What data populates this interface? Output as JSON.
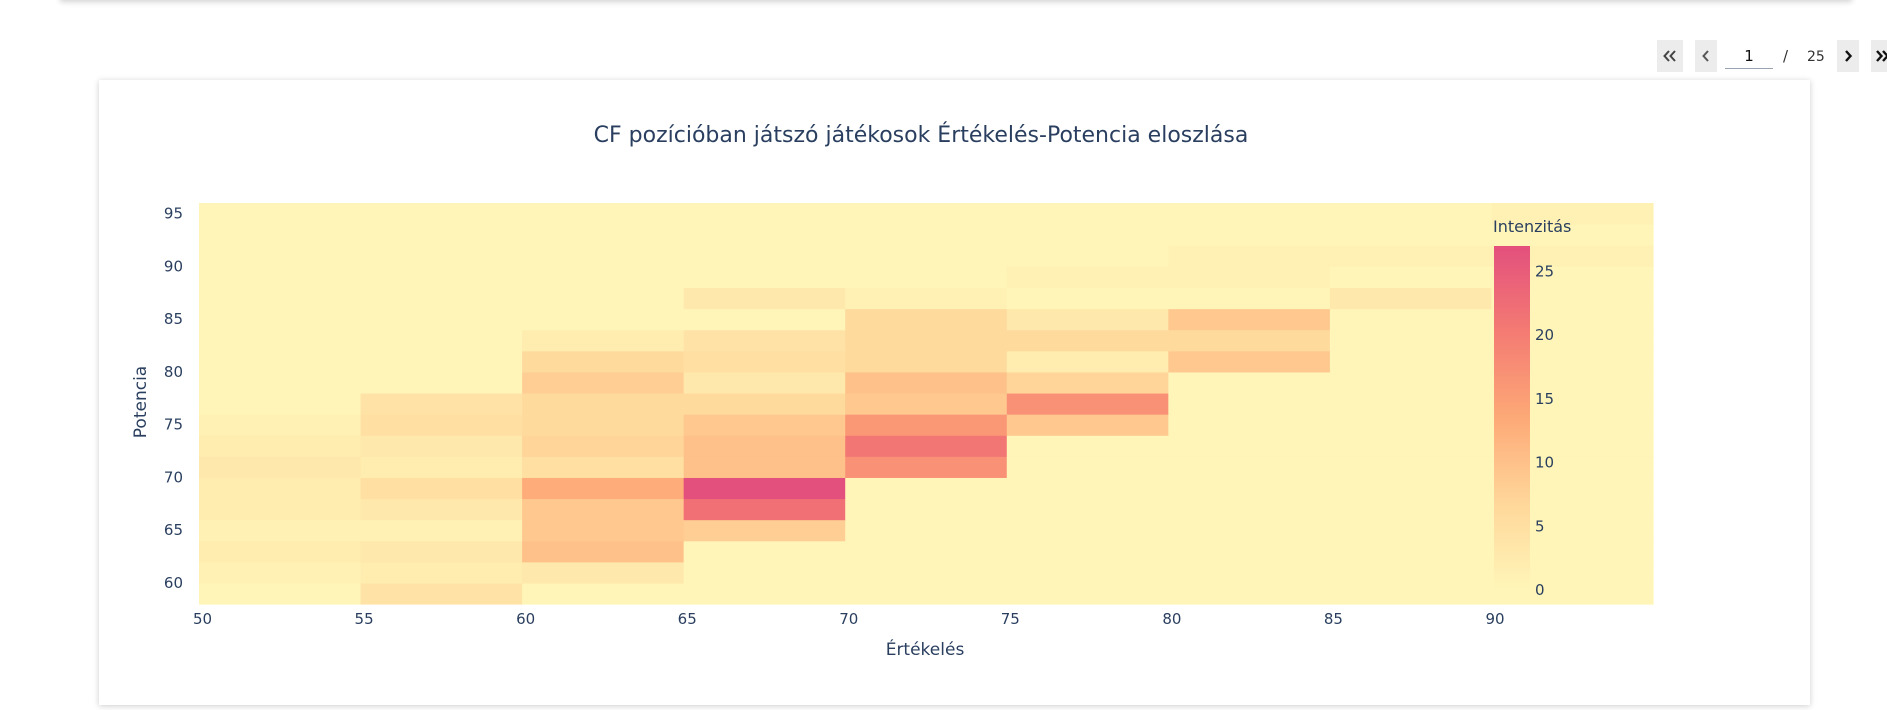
{
  "pagination": {
    "current_page": "1",
    "separator": "/",
    "total_pages": "25",
    "first_icon": "double-chevron-left-icon",
    "prev_icon": "chevron-left-icon",
    "next_icon": "chevron-right-icon",
    "last_icon": "double-chevron-right-icon"
  },
  "chart_data": {
    "type": "heatmap",
    "title": "CF pozícióban játszó játékosok Értékelés-Potencia eloszlása",
    "xlabel": "Értékelés",
    "ylabel": "Potencia",
    "x_bins": [
      50,
      55,
      60,
      65,
      70,
      75,
      80,
      85,
      90
    ],
    "x_bin_width": 5,
    "y_bins": [
      58,
      60,
      62,
      64,
      66,
      68,
      70,
      72,
      74,
      76,
      78,
      80,
      82,
      84,
      86,
      88,
      90,
      92,
      94
    ],
    "y_bin_width": 2,
    "xlim": [
      50,
      95
    ],
    "ylim": [
      58,
      96
    ],
    "x_ticks": [
      50,
      55,
      60,
      65,
      70,
      75,
      80,
      85,
      90
    ],
    "y_ticks": [
      60,
      65,
      70,
      75,
      80,
      85,
      90,
      95
    ],
    "z": [
      [
        0,
        4,
        0,
        0,
        0,
        0,
        0,
        0,
        0
      ],
      [
        1,
        2,
        3,
        0,
        0,
        0,
        0,
        0,
        0
      ],
      [
        2,
        3,
        10,
        0,
        0,
        0,
        0,
        0,
        0
      ],
      [
        1,
        1,
        9,
        8,
        0,
        0,
        0,
        0,
        0
      ],
      [
        2,
        3,
        9,
        22,
        0,
        0,
        0,
        0,
        0
      ],
      [
        2,
        5,
        13,
        27,
        0,
        0,
        0,
        0,
        0
      ],
      [
        3,
        2,
        5,
        10,
        17,
        0,
        0,
        0,
        0
      ],
      [
        2,
        3,
        7,
        10,
        21,
        0,
        0,
        0,
        0
      ],
      [
        1,
        5,
        6,
        9,
        16,
        9,
        0,
        0,
        0
      ],
      [
        0,
        4,
        6,
        6,
        9,
        17,
        0,
        0,
        0
      ],
      [
        0,
        0,
        8,
        3,
        10,
        7,
        0,
        0,
        0
      ],
      [
        0,
        0,
        6,
        5,
        6,
        2,
        9,
        0,
        0
      ],
      [
        0,
        0,
        2,
        4,
        6,
        6,
        6,
        0,
        0
      ],
      [
        0,
        0,
        0,
        0,
        6,
        3,
        9,
        0,
        0
      ],
      [
        0,
        0,
        0,
        3,
        1,
        0,
        0,
        3,
        0
      ],
      [
        0,
        0,
        0,
        0,
        0,
        1,
        1,
        0,
        0
      ],
      [
        0,
        0,
        0,
        0,
        0,
        0,
        1,
        1,
        1
      ],
      [
        0,
        0,
        0,
        0,
        0,
        0,
        0,
        0,
        0
      ],
      [
        0,
        0,
        0,
        0,
        0,
        0,
        0,
        0,
        1
      ]
    ],
    "colorbar": {
      "title": "Intenzitás",
      "range": [
        0,
        27
      ],
      "ticks": [
        0,
        5,
        10,
        15,
        20,
        25
      ]
    },
    "colorscale": [
      [
        0,
        "#fff5b8"
      ],
      [
        0.25,
        "#ffd79a"
      ],
      [
        0.5,
        "#fda977"
      ],
      [
        0.75,
        "#f47b73"
      ],
      [
        1,
        "#e3507d"
      ]
    ]
  }
}
